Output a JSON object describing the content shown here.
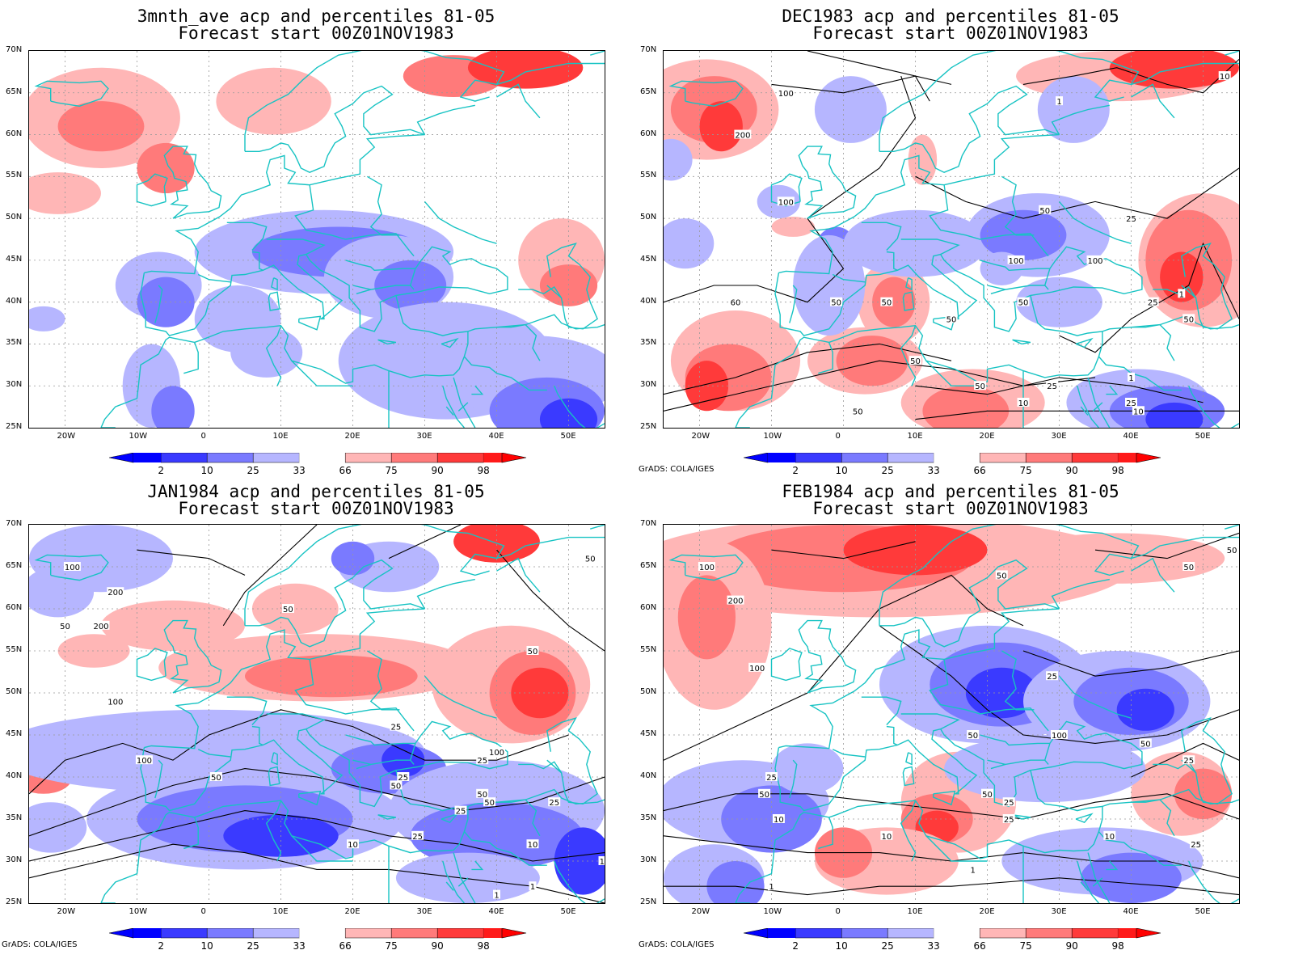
{
  "map_data": {
    "lon_labels": [
      "20W",
      "10W",
      "0",
      "10E",
      "20E",
      "30E",
      "40E",
      "50E"
    ],
    "lat_labels": [
      "70N",
      "65N",
      "60N",
      "55N",
      "50N",
      "45N",
      "40N",
      "35N",
      "30N",
      "25N"
    ],
    "colorbar_labels": [
      "2",
      "10",
      "25",
      "33",
      "66",
      "75",
      "90",
      "98"
    ],
    "colorbar_colors": [
      "#0000ff",
      "#3a3aff",
      "#7a7aff",
      "#b6b6ff",
      "#ffffff",
      "#ffb6b6",
      "#ff7a7a",
      "#ff3a3a",
      "#ff0000"
    ],
    "credit": "GrADS: COLA/IGES",
    "panels": [
      {
        "title_line1": "3mnth_ave acp and percentiles 81-05",
        "title_line2": "Forecast start 00Z01NOV1983",
        "contour_labels": [],
        "show_credit": false
      },
      {
        "title_line1": "DEC1983 acp and percentiles 81-05",
        "title_line2": "Forecast start 00Z01NOV1983",
        "contour_labels": [
          "100",
          "200",
          "100",
          "50",
          "60",
          "50",
          "50",
          "50",
          "25",
          "100",
          "100",
          "50",
          "50",
          "50",
          "25",
          "50",
          "10",
          "25",
          "10",
          "1",
          "1",
          "10",
          "1",
          "25",
          "50"
        ],
        "show_credit": true
      },
      {
        "title_line1": "JAN1984 acp and percentiles 81-05",
        "title_line2": "Forecast start 00Z01NOV1983",
        "contour_labels": [
          "100",
          "200",
          "50",
          "50",
          "200",
          "50",
          "50",
          "100",
          "25",
          "100",
          "50",
          "100",
          "25",
          "50",
          "25",
          "50",
          "25",
          "10",
          "25",
          "50",
          "25",
          "10",
          "10",
          "1",
          "1"
        ],
        "show_credit": true
      },
      {
        "title_line1": "FEB1984 acp and percentiles 81-05",
        "title_line2": "Forecast start 00Z01NOV1983",
        "contour_labels": [
          "100",
          "50",
          "200",
          "50",
          "50",
          "100",
          "25",
          "50",
          "25",
          "50",
          "100",
          "50",
          "25",
          "50",
          "25",
          "25",
          "10",
          "10",
          "50",
          "25",
          "10",
          "1",
          "1"
        ],
        "show_credit": true
      }
    ]
  }
}
